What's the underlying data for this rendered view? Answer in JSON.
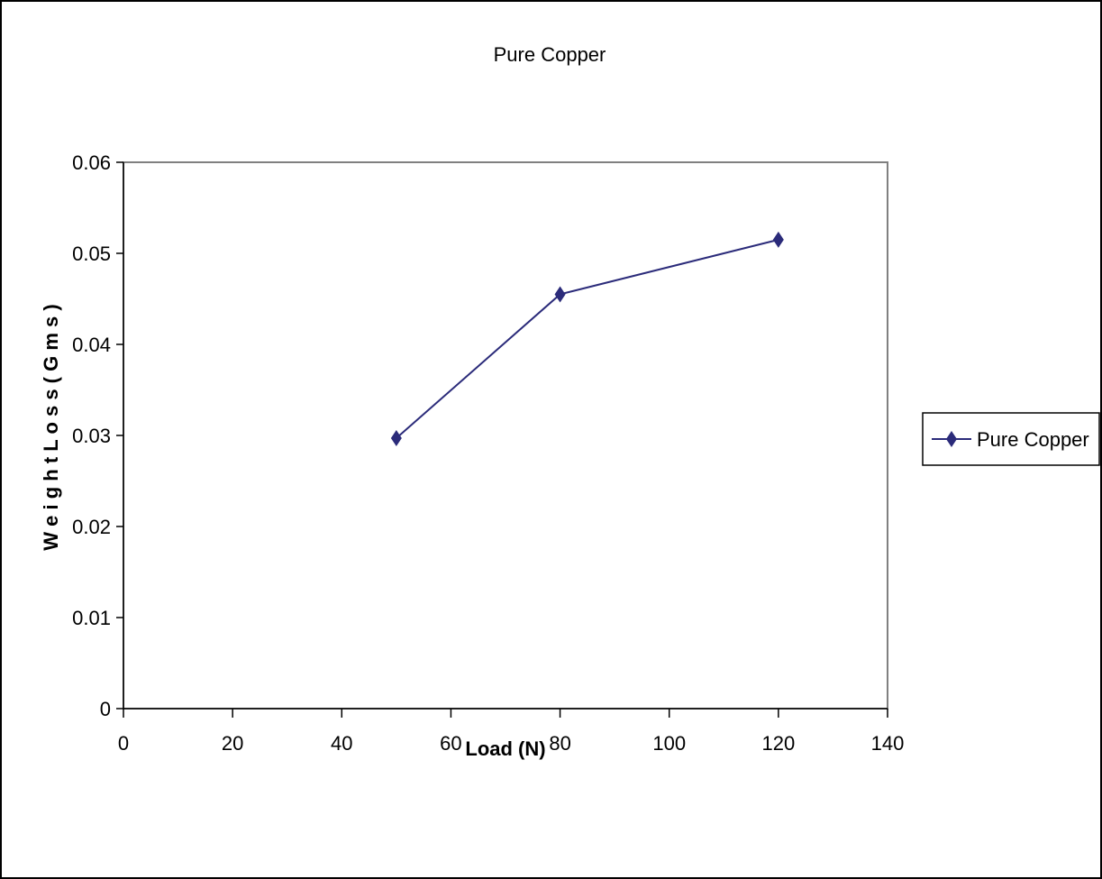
{
  "chart_data": {
    "type": "line",
    "title": "Pure Copper",
    "xlabel": "Load (N)",
    "ylabel": "W e i g h t L o s s ( G m s )",
    "xlim": [
      0,
      140
    ],
    "ylim": [
      0,
      0.06
    ],
    "x_ticks": [
      "0",
      "20",
      "40",
      "60",
      "80",
      "100",
      "120",
      "140"
    ],
    "y_ticks": [
      "0",
      "0.01",
      "0.02",
      "0.03",
      "0.04",
      "0.05",
      "0.06"
    ],
    "grid": false,
    "legend_position": "right",
    "series": [
      {
        "name": "Pure Copper",
        "color": "#2b2b7a",
        "marker": "diamond",
        "x": [
          50,
          80,
          120
        ],
        "y": [
          0.0297,
          0.0455,
          0.0515
        ]
      }
    ]
  }
}
